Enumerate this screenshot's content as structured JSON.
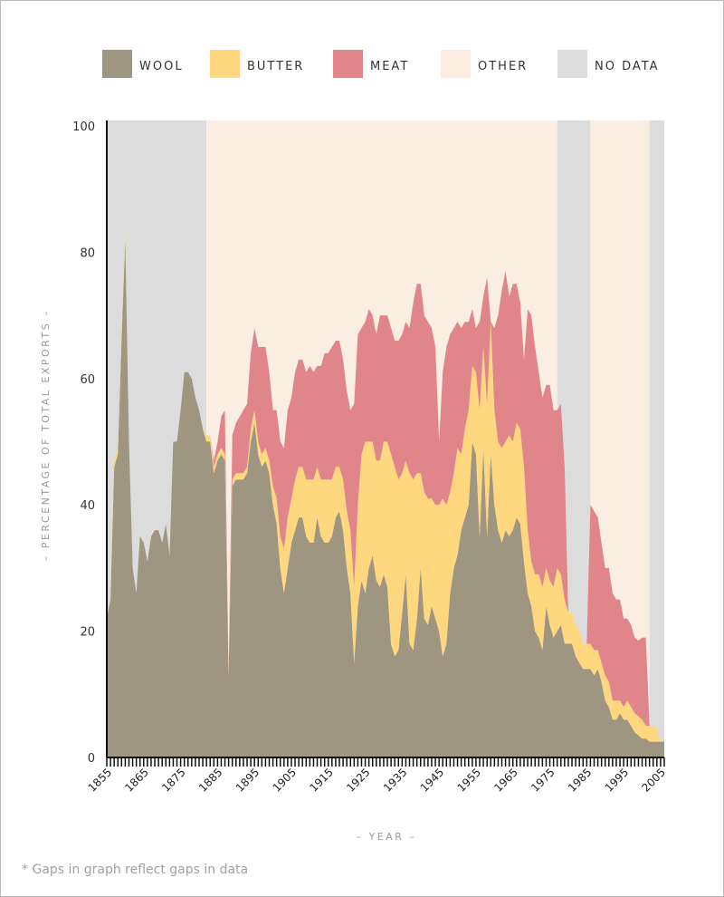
{
  "footnote": "* Gaps in graph reflect gaps in data",
  "chart_data": {
    "type": "area",
    "stacked": true,
    "title": "",
    "xlabel": "– YEAR –",
    "ylabel": "– PERCENTAGE OF TOTAL EXPORTS –",
    "xlim": [
      1855,
      2006
    ],
    "ylim": [
      0,
      100
    ],
    "yticks": [
      0,
      20,
      40,
      60,
      80,
      100
    ],
    "xticks": [
      1855,
      1865,
      1875,
      1885,
      1895,
      1905,
      1915,
      1925,
      1935,
      1945,
      1955,
      1965,
      1975,
      1985,
      1995,
      2005
    ],
    "legend_position": "top",
    "legend": [
      {
        "key": "wool",
        "label": "WOOL",
        "color": "#9e9680"
      },
      {
        "key": "butter",
        "label": "BUTTER",
        "color": "#ffd77f"
      },
      {
        "key": "meat",
        "label": "MEAT",
        "color": "#e0868a"
      },
      {
        "key": "other",
        "label": "OTHER",
        "color": "#f9eee1"
      },
      {
        "key": "nodata",
        "label": "NO DATA",
        "color": "#dcdcdc"
      }
    ],
    "background_bands": [
      {
        "type": "nodata",
        "from": 1855,
        "to": 1882
      },
      {
        "type": "other",
        "from": 1882,
        "to": 1977
      },
      {
        "type": "nodata",
        "from": 1977,
        "to": 1986
      },
      {
        "type": "other",
        "from": 1986,
        "to": 2002
      },
      {
        "type": "nodata",
        "from": 2002,
        "to": 2006
      }
    ],
    "x": [
      1855,
      1856,
      1857,
      1858,
      1859,
      1860,
      1861,
      1862,
      1863,
      1864,
      1865,
      1866,
      1867,
      1868,
      1869,
      1870,
      1871,
      1872,
      1873,
      1874,
      1875,
      1876,
      1877,
      1878,
      1879,
      1880,
      1881,
      1882,
      1883,
      1884,
      1885,
      1886,
      1887,
      1888,
      1889,
      1890,
      1891,
      1892,
      1893,
      1894,
      1895,
      1896,
      1897,
      1898,
      1899,
      1900,
      1901,
      1902,
      1903,
      1904,
      1905,
      1906,
      1907,
      1908,
      1909,
      1910,
      1911,
      1912,
      1913,
      1914,
      1915,
      1916,
      1917,
      1918,
      1919,
      1920,
      1921,
      1922,
      1923,
      1924,
      1925,
      1926,
      1927,
      1928,
      1929,
      1930,
      1931,
      1932,
      1933,
      1934,
      1935,
      1936,
      1937,
      1938,
      1939,
      1940,
      1941,
      1942,
      1943,
      1944,
      1945,
      1946,
      1947,
      1948,
      1949,
      1950,
      1951,
      1952,
      1953,
      1954,
      1955,
      1956,
      1957,
      1958,
      1959,
      1960,
      1961,
      1962,
      1963,
      1964,
      1965,
      1966,
      1967,
      1968,
      1969,
      1970,
      1971,
      1972,
      1973,
      1974,
      1975,
      1976,
      1977,
      1978,
      1979,
      1980,
      1981,
      1982,
      1983,
      1984,
      1985,
      1986,
      1987,
      1988,
      1989,
      1990,
      1991,
      1992,
      1993,
      1994,
      1995,
      1996,
      1997,
      1998,
      1999,
      2000,
      2001,
      2002,
      2003,
      2004,
      2005,
      2006
    ],
    "series": [
      {
        "name": "WOOL",
        "values": [
          22,
          25,
          46,
          48,
          66,
          82,
          50,
          30,
          26,
          35,
          34,
          31,
          35,
          36,
          36,
          34,
          37,
          32,
          50,
          50,
          55,
          61,
          61,
          60,
          57,
          55,
          52,
          50,
          50,
          45,
          47,
          48,
          47,
          13,
          43,
          44,
          44,
          44,
          45,
          50,
          53,
          48,
          46,
          47,
          45,
          40,
          37,
          30,
          26,
          30,
          34,
          36,
          38,
          38,
          35,
          34,
          34,
          38,
          35,
          34,
          34,
          35,
          38,
          39,
          36,
          30,
          26,
          15,
          24,
          28,
          26,
          30,
          32,
          28,
          27,
          29,
          27,
          18,
          16,
          17,
          23,
          29,
          18,
          17,
          22,
          30,
          22,
          21,
          24,
          22,
          20,
          16,
          18,
          26,
          30,
          32,
          36,
          38,
          40,
          50,
          48,
          35,
          49,
          35,
          48,
          40,
          36,
          34,
          36,
          35,
          36,
          38,
          37,
          31,
          26,
          24,
          20,
          19,
          17,
          24,
          21,
          19,
          20,
          21,
          18,
          18,
          18,
          16,
          15,
          14,
          14,
          14,
          13,
          14,
          12,
          9,
          8,
          6,
          6,
          7,
          6,
          6,
          5,
          4,
          3.5,
          3,
          3,
          2.5,
          2.5,
          2.5,
          2.5,
          2.5
        ]
      },
      {
        "name": "BUTTER",
        "values": [
          0,
          0,
          1,
          1,
          1,
          1,
          0,
          0,
          0,
          0,
          0,
          0,
          0,
          0,
          0,
          0,
          0,
          0,
          0,
          0,
          0,
          0,
          0,
          0,
          0,
          0,
          0,
          1,
          1,
          1,
          1,
          1,
          1,
          1,
          1,
          1,
          1,
          1,
          1,
          2,
          2,
          2,
          2,
          2,
          2,
          3,
          4,
          5,
          7,
          8,
          7,
          8,
          8,
          8,
          9,
          10,
          10,
          8,
          9,
          10,
          10,
          9,
          8,
          7,
          8,
          9,
          10,
          12,
          16,
          20,
          24,
          20,
          18,
          19,
          20,
          21,
          23,
          30,
          30,
          27,
          22,
          18,
          27,
          27,
          23,
          15,
          20,
          20,
          17,
          18,
          20,
          25,
          22,
          16,
          15,
          17,
          12,
          14,
          15,
          12,
          13,
          20,
          16,
          21,
          21,
          15,
          14,
          15,
          14,
          16,
          14,
          15,
          15,
          15,
          10,
          7,
          9,
          10,
          10,
          6,
          7,
          8,
          10,
          8,
          7,
          5,
          5,
          5,
          5,
          4,
          4,
          4,
          4,
          3,
          3,
          4,
          4,
          3,
          3,
          2,
          2,
          3,
          3,
          3,
          3,
          3,
          2,
          2.5,
          2.5,
          2,
          0,
          0
        ]
      },
      {
        "name": "MEAT",
        "values": [
          0,
          0,
          0,
          0,
          0,
          0,
          0,
          0,
          0,
          0,
          0,
          0,
          0,
          0,
          0,
          0,
          0,
          0,
          0,
          0,
          0,
          0,
          0,
          0,
          0,
          0,
          0,
          0,
          0,
          1,
          2,
          5,
          7,
          0,
          7,
          8,
          9,
          10,
          10,
          12,
          13,
          15,
          17,
          16,
          14,
          12,
          14,
          15,
          16,
          17,
          16,
          17,
          17,
          17,
          17,
          18,
          17,
          16,
          18,
          20,
          20,
          21,
          20,
          20,
          19,
          19,
          19,
          29,
          27,
          20,
          19,
          21,
          20,
          20,
          23,
          20,
          20,
          20,
          20,
          22,
          22,
          22,
          23,
          28,
          30,
          30,
          28,
          28,
          27,
          25,
          10,
          20,
          25,
          25,
          23,
          20,
          20,
          17,
          14,
          9,
          7,
          14,
          8,
          20,
          0,
          13,
          20,
          25,
          27,
          22,
          25,
          22,
          20,
          17,
          35,
          39,
          36,
          32,
          30,
          29,
          31,
          28,
          25,
          27,
          21,
          0,
          0,
          0,
          0,
          0,
          0,
          22,
          22,
          21,
          19,
          17,
          18,
          17,
          16,
          16,
          14,
          13,
          13,
          12,
          12,
          13,
          14,
          0,
          0,
          0,
          0,
          0
        ]
      }
    ]
  }
}
